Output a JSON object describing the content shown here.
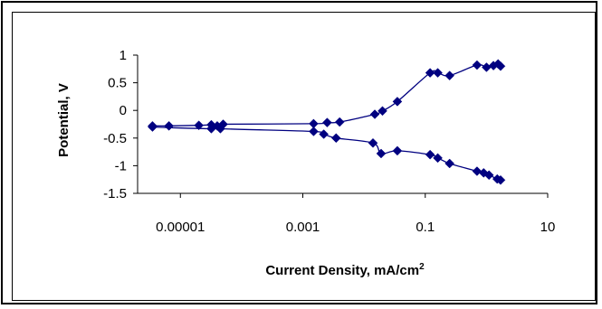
{
  "chart_data": {
    "type": "scatter",
    "xscale": "log",
    "xlabel_main": "Current Density, mA/cm",
    "xlabel_sup": "2",
    "ylabel": "Potential, V",
    "xlim": [
      2e-06,
      10
    ],
    "ylim": [
      -1.5,
      1
    ],
    "xticks": [
      {
        "value": 1e-05,
        "label": "0.00001"
      },
      {
        "value": 0.001,
        "label": "0.001"
      },
      {
        "value": 0.1,
        "label": "0.1"
      },
      {
        "value": 10,
        "label": "10"
      }
    ],
    "yticks": [
      {
        "value": 1,
        "label": "1"
      },
      {
        "value": 0.5,
        "label": "0.5"
      },
      {
        "value": 0,
        "label": "0"
      },
      {
        "value": -0.5,
        "label": "-0.5"
      },
      {
        "value": -1,
        "label": "-1"
      },
      {
        "value": -1.5,
        "label": "-1.5"
      }
    ],
    "grid": false,
    "legend": "none",
    "color": "#000080",
    "series": [
      {
        "points": [
          [
            3.5e-06,
            -0.28
          ],
          [
            6.5e-06,
            -0.28
          ],
          [
            2e-05,
            -0.27
          ],
          [
            3.2e-05,
            -0.26
          ],
          [
            5e-05,
            -0.25
          ],
          [
            0.0015,
            -0.24
          ],
          [
            0.0025,
            -0.22
          ],
          [
            0.004,
            -0.21
          ],
          [
            0.015,
            -0.07
          ],
          [
            0.02,
            -0.01
          ],
          [
            0.035,
            0.16
          ],
          [
            0.12,
            0.68
          ],
          [
            0.16,
            0.68
          ],
          [
            0.25,
            0.63
          ],
          [
            0.7,
            0.82
          ],
          [
            1.0,
            0.78
          ],
          [
            1.3,
            0.81
          ],
          [
            1.55,
            0.84
          ],
          [
            1.7,
            0.8
          ]
        ]
      },
      {
        "points": [
          [
            3.5e-06,
            -0.3
          ],
          [
            3.2e-05,
            -0.33
          ],
          [
            4.5e-05,
            -0.33
          ],
          [
            4e-05,
            -0.28
          ],
          [
            0.0015,
            -0.38
          ],
          [
            0.0022,
            -0.43
          ],
          [
            0.0035,
            -0.5
          ],
          [
            0.014,
            -0.59
          ],
          [
            0.019,
            -0.78
          ],
          [
            0.035,
            -0.73
          ],
          [
            0.12,
            -0.8
          ],
          [
            0.16,
            -0.86
          ],
          [
            0.25,
            -0.96
          ],
          [
            0.7,
            -1.1
          ],
          [
            0.9,
            -1.13
          ],
          [
            1.1,
            -1.17
          ],
          [
            1.5,
            -1.24
          ],
          [
            1.7,
            -1.26
          ]
        ]
      }
    ]
  }
}
